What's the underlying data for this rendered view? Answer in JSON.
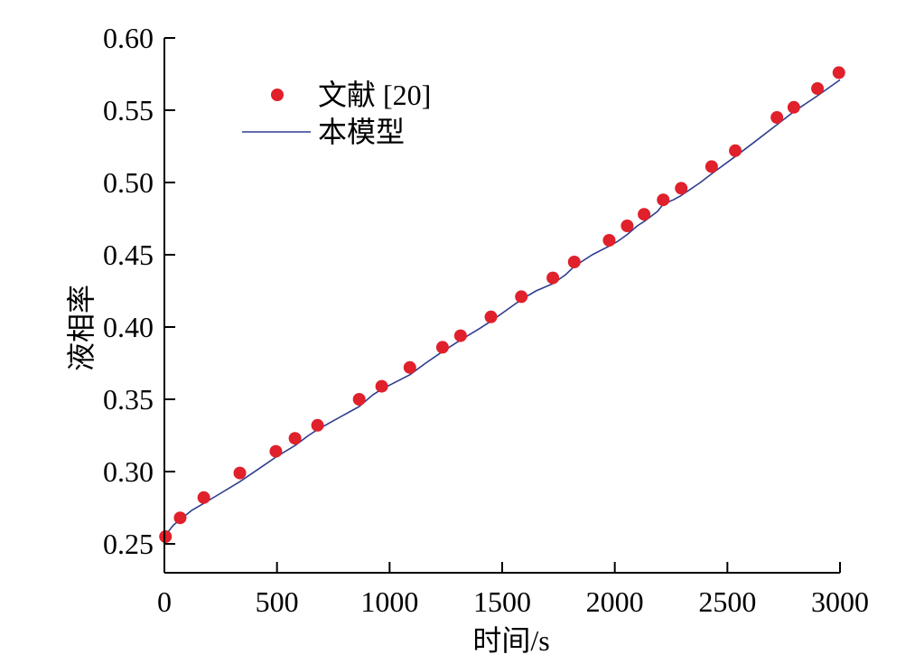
{
  "chart_data": {
    "type": "scatter",
    "title": "",
    "xlabel": "时间/s",
    "ylabel": "液相率",
    "xlim": [
      0,
      3000
    ],
    "ylim": [
      0.23,
      0.6
    ],
    "x_ticks": [
      0,
      500,
      1000,
      1500,
      2000,
      2500,
      3000
    ],
    "x_tick_labels": [
      "0",
      "500",
      "1000",
      "1500",
      "2000",
      "2500",
      "3000"
    ],
    "y_ticks": [
      0.25,
      0.3,
      0.35,
      0.4,
      0.45,
      0.5,
      0.55,
      0.6
    ],
    "y_tick_labels": [
      "0.25",
      "0.30",
      "0.35",
      "0.40",
      "0.45",
      "0.50",
      "0.55",
      "0.60"
    ],
    "grid": false,
    "legend_position": "top-left",
    "series": [
      {
        "name": "文献 [20]",
        "kind": "scatter",
        "color": "#e0202a",
        "x": [
          5,
          70,
          175,
          335,
          495,
          580,
          680,
          865,
          965,
          1090,
          1235,
          1315,
          1450,
          1585,
          1725,
          1820,
          1975,
          2055,
          2130,
          2215,
          2295,
          2430,
          2535,
          2720,
          2795,
          2900,
          2995
        ],
        "y": [
          0.255,
          0.268,
          0.282,
          0.299,
          0.314,
          0.323,
          0.332,
          0.35,
          0.359,
          0.372,
          0.386,
          0.394,
          0.407,
          0.421,
          0.434,
          0.445,
          0.46,
          0.47,
          0.478,
          0.488,
          0.496,
          0.511,
          0.522,
          0.545,
          0.552,
          0.565,
          0.576
        ]
      },
      {
        "name": "本模型",
        "kind": "line",
        "color": "#2e3d8f",
        "x": [
          0,
          15,
          40,
          80,
          120,
          175,
          250,
          335,
          420,
          495,
          580,
          640,
          680,
          760,
          865,
          925,
          965,
          1090,
          1160,
          1235,
          1315,
          1400,
          1450,
          1585,
          1650,
          1725,
          1780,
          1820,
          1900,
          1975,
          2010,
          2055,
          2100,
          2130,
          2190,
          2215,
          2260,
          2295,
          2380,
          2430,
          2535,
          2620,
          2720,
          2795,
          2900,
          3000
        ],
        "y": [
          0.252,
          0.258,
          0.263,
          0.268,
          0.273,
          0.278,
          0.285,
          0.293,
          0.302,
          0.31,
          0.318,
          0.325,
          0.329,
          0.336,
          0.345,
          0.353,
          0.357,
          0.367,
          0.375,
          0.383,
          0.391,
          0.399,
          0.404,
          0.419,
          0.425,
          0.43,
          0.436,
          0.442,
          0.45,
          0.456,
          0.459,
          0.464,
          0.47,
          0.473,
          0.48,
          0.485,
          0.488,
          0.491,
          0.5,
          0.506,
          0.518,
          0.528,
          0.54,
          0.549,
          0.56,
          0.571
        ]
      }
    ]
  }
}
